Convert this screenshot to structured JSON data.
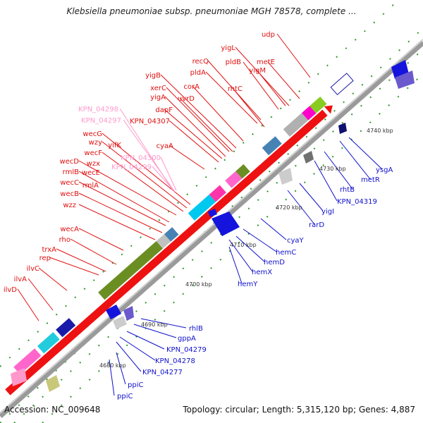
{
  "title": "Klebsiella pneumoniae subsp. pneumoniae MGH 78578, complete ...",
  "footer": {
    "accession": "Accession: NC_009648",
    "summary": "Topology: circular; Length: 5,315,120 bp; Genes: 4,887"
  },
  "ticks": [
    "4680 kbp",
    "4690 kbp",
    "4700 kbp",
    "4710 kbp",
    "4720 kbp",
    "4730 kbp",
    "4740 kbp"
  ],
  "labels_upper_red": [
    "udp",
    "yigL",
    "metE",
    "pldB",
    "yigM",
    "recQ",
    "pldA",
    "rhtC",
    "yigB",
    "corA",
    "xerC",
    "uvrD",
    "yigA",
    "dapF",
    "KPN_04307",
    "cyaA",
    "wecG",
    "yifK",
    "wzy",
    "wecF",
    "wzx",
    "wecD",
    "wecE",
    "rmlB",
    "wecC",
    "rmlA",
    "wecB",
    "wzz",
    "wecA",
    "rho",
    "trxA",
    "rep",
    "ilvC",
    "ilvA",
    "ilvD"
  ],
  "labels_upper_pink": [
    "KPN_04298",
    "KPN_04297",
    "KPN_04300",
    "KPN_04299"
  ],
  "labels_lower_blue": [
    "ysgA",
    "metR",
    "rhtB",
    "KPN_04319",
    "yigI",
    "rarD",
    "cyaY",
    "hemC",
    "hemD",
    "hemX",
    "hemY",
    "rhlB",
    "gppA",
    "KPN_04279",
    "KPN_04278",
    "KPN_04277",
    "ppiC",
    "ppiC"
  ]
}
